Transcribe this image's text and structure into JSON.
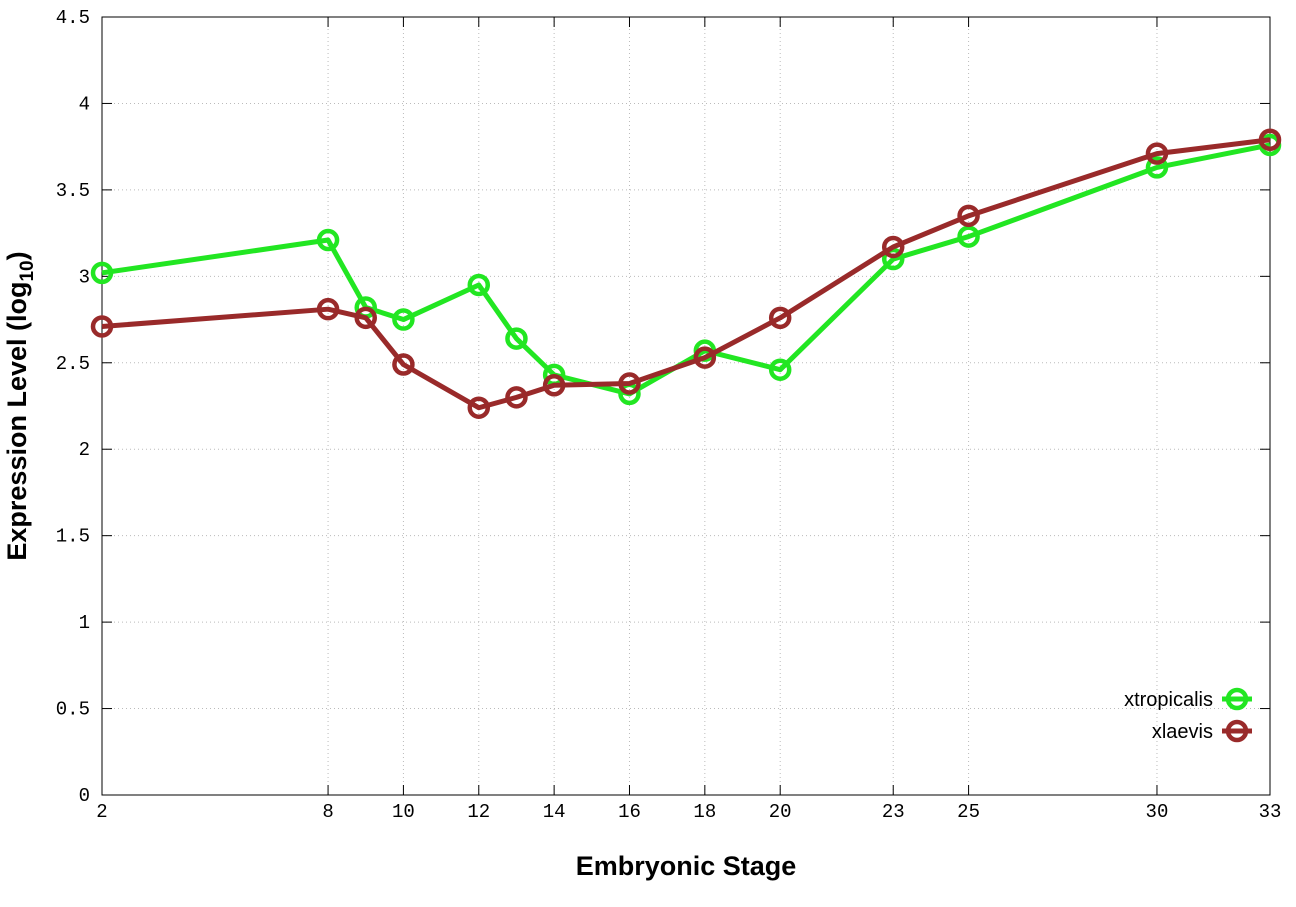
{
  "chart_data": {
    "type": "line",
    "xlabel": "Embryonic Stage",
    "ylabel": [
      "Expression Level (log",
      "10",
      ")"
    ],
    "x": [
      2,
      8,
      9,
      10,
      12,
      13,
      14,
      16,
      18,
      20,
      23,
      25,
      30,
      33
    ],
    "series": [
      {
        "name": "xtropicalis",
        "color": "#22e622",
        "values": [
          3.02,
          3.21,
          2.82,
          2.75,
          2.95,
          2.64,
          2.43,
          2.32,
          2.57,
          2.46,
          3.1,
          3.23,
          3.63,
          3.76
        ]
      },
      {
        "name": "xlaevis",
        "color": "#992a2a",
        "values": [
          2.71,
          2.81,
          2.76,
          2.49,
          2.24,
          2.3,
          2.37,
          2.38,
          2.53,
          2.76,
          3.17,
          3.35,
          3.71,
          3.79
        ]
      }
    ],
    "xlim": [
      2,
      33
    ],
    "xticks": [
      2,
      8,
      10,
      12,
      14,
      16,
      18,
      20,
      23,
      25,
      30,
      33
    ],
    "ylim": [
      0,
      4.5
    ],
    "yticks": [
      0,
      0.5,
      1,
      1.5,
      2,
      2.5,
      3,
      3.5,
      4,
      4.5
    ],
    "grid": true,
    "legend": "lower right"
  }
}
